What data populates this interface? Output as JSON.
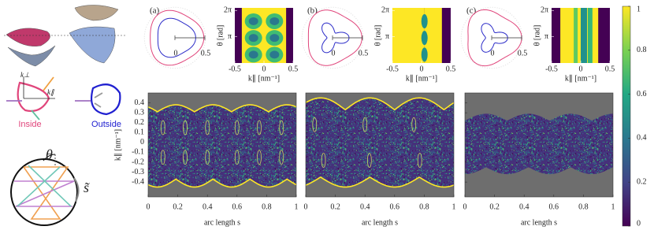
{
  "schematic": {
    "k_perp": "k⊥",
    "k_par": "k∥",
    "inside": "Inside",
    "outside": "Outside",
    "theta": "θ",
    "s": "s̃"
  },
  "panels": [
    {
      "label": "(a)",
      "polar": {
        "rlim": [
          0,
          0.6
        ],
        "rticks": [
          0,
          0.5
        ]
      },
      "heatmap": {
        "xlabel": "k∥ [nm⁻¹]",
        "ylabel": "θ [rad]",
        "xlim": [
          -0.5,
          0.5
        ],
        "xticks": [
          -0.5,
          0,
          0.5
        ],
        "ylim": [
          0,
          6.6
        ],
        "yticks": [
          {
            "value": 3.1416,
            "label": "π"
          },
          {
            "value": 6.2832,
            "label": "2π"
          }
        ]
      },
      "phase": {
        "xlabel": "arc length s",
        "xlim": [
          0,
          1
        ],
        "xticks": [
          0,
          0.2,
          0.4,
          0.6,
          0.8,
          1
        ]
      }
    },
    {
      "label": "(b)",
      "polar": {
        "rlim": [
          0,
          0.6
        ],
        "rticks": [
          0,
          0.5
        ]
      },
      "heatmap": {
        "xlabel": "k∥ [nm⁻¹]",
        "ylabel": "θ [rad]",
        "xlim": [
          -0.5,
          0.5
        ],
        "xticks": [
          -0.5,
          0,
          0.5
        ],
        "ylim": [
          0,
          6.6
        ],
        "yticks": [
          {
            "value": 3.1416,
            "label": "π"
          },
          {
            "value": 6.2832,
            "label": "2π"
          }
        ]
      },
      "phase": {
        "xlabel": "arc length s",
        "xlim": [
          0,
          1
        ],
        "xticks": [
          0,
          0.2,
          0.4,
          0.6,
          0.8,
          1
        ]
      }
    },
    {
      "label": "(c)",
      "polar": {
        "rlim": [
          0,
          0.6
        ],
        "rticks": [
          0,
          0.5
        ]
      },
      "heatmap": {
        "xlabel": "k∥ [nm⁻¹]",
        "ylabel": "θ [rad]",
        "xlim": [
          -0.5,
          0.5
        ],
        "xticks": [
          -0.5,
          0,
          0.5
        ],
        "ylim": [
          0,
          6.6
        ],
        "yticks": [
          {
            "value": 3.1416,
            "label": "π"
          },
          {
            "value": 6.2832,
            "label": "2π"
          }
        ]
      },
      "phase": {
        "xlabel": "arc length s",
        "xlim": [
          0,
          1
        ],
        "xticks": [
          0,
          0.2,
          0.4,
          0.6,
          0.8,
          1
        ]
      }
    }
  ],
  "phase_axis": {
    "ylabel": "k∥ [nm⁻¹]",
    "ylim": [
      -0.55,
      0.5
    ],
    "yticks": [
      -0.4,
      -0.3,
      -0.2,
      -0.1,
      0,
      0.1,
      0.2,
      0.3,
      0.4
    ]
  },
  "colorbar": {
    "ylim": [
      0,
      1
    ],
    "yticks": [
      0,
      0.2,
      0.4,
      0.6,
      0.8,
      1
    ]
  }
}
